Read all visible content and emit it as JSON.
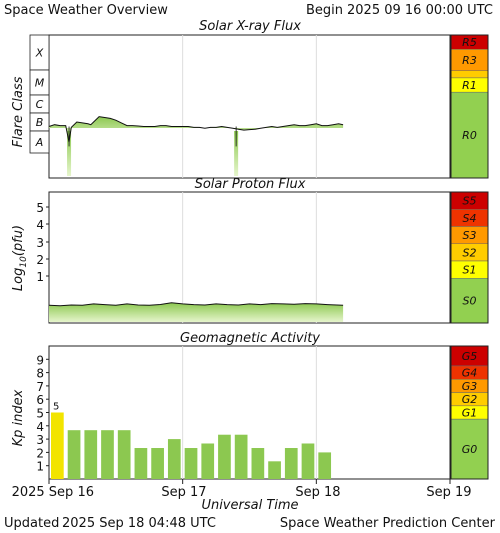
{
  "header": {
    "title": "Space Weather Overview",
    "begin_label": "Begin",
    "begin_value": "2025 09 16 00:00 UTC"
  },
  "footer": {
    "updated_label": "Updated",
    "updated_value": "2025 Sep 18 04:48 UTC",
    "credit": "Space Weather Prediction Center"
  },
  "time_axis": {
    "label": "Universal Time",
    "ticks": [
      "2025 Sep 16",
      "Sep 17",
      "Sep 18",
      "Sep 19"
    ],
    "range_hours": [
      0,
      72
    ],
    "data_end_hours": 52.8
  },
  "chart_data": [
    {
      "type": "area",
      "title": "Solar X-ray Flux",
      "ylabel": "Flare Class",
      "y_ticks": [
        "X",
        "M",
        "C",
        "B",
        "A"
      ],
      "scale_labels": [
        "R5",
        "R3",
        "R1",
        "R0"
      ],
      "series": [
        {
          "x": [
            0,
            1,
            2,
            3,
            3.6,
            4,
            5,
            6,
            7,
            7.5,
            8,
            9,
            10,
            11,
            12,
            13,
            14,
            15,
            16,
            17,
            18,
            19,
            20,
            21,
            22,
            23,
            24,
            25,
            26,
            27,
            28,
            29,
            30,
            31,
            32,
            33,
            34,
            35,
            36,
            37,
            38,
            39,
            40,
            41,
            42,
            43,
            44,
            45,
            46,
            47,
            48,
            49,
            50,
            51,
            52,
            52.8
          ],
          "value": [
            1.25,
            1.35,
            1.3,
            1.3,
            0.5,
            1.2,
            1.5,
            1.45,
            1.4,
            1.35,
            1.5,
            1.8,
            1.75,
            1.7,
            1.6,
            1.45,
            1.3,
            1.3,
            1.28,
            1.25,
            1.25,
            1.25,
            1.3,
            1.3,
            1.25,
            1.25,
            1.25,
            1.25,
            1.2,
            1.2,
            1.15,
            1.2,
            1.2,
            1.25,
            1.2,
            1.15,
            1.1,
            1.05,
            1.08,
            1.1,
            1.15,
            1.2,
            1.25,
            1.2,
            1.25,
            1.3,
            1.35,
            1.3,
            1.3,
            1.35,
            1.4,
            1.3,
            1.3,
            1.35,
            1.4,
            1.35
          ],
          "dips_at_hours": [
            3.6,
            33.6
          ]
        }
      ],
      "y_unit_note": "value: 0=A, 1=B, 2=C, 3=M, 4=X (log decade)"
    },
    {
      "type": "area",
      "title": "Solar Proton Flux",
      "ylabel": "Log10(pfu)",
      "ylabel_main": "Log",
      "ylabel_sub": "10",
      "ylabel_tail": "(pfu)",
      "y_ticks": [
        "5",
        "4",
        "3",
        "2",
        "1"
      ],
      "ylim": [
        -1.5,
        6
      ],
      "scale_labels": [
        "S5",
        "S4",
        "S3",
        "S2",
        "S1",
        "S0"
      ],
      "series": [
        {
          "x": [
            0,
            2,
            4,
            6,
            8,
            10,
            12,
            14,
            16,
            18,
            20,
            22,
            24,
            26,
            28,
            30,
            32,
            34,
            36,
            38,
            40,
            42,
            44,
            46,
            48,
            50,
            52.8
          ],
          "value": [
            -0.7,
            -0.72,
            -0.68,
            -0.7,
            -0.62,
            -0.66,
            -0.7,
            -0.62,
            -0.68,
            -0.7,
            -0.65,
            -0.55,
            -0.62,
            -0.66,
            -0.68,
            -0.62,
            -0.66,
            -0.68,
            -0.62,
            -0.66,
            -0.6,
            -0.62,
            -0.64,
            -0.6,
            -0.62,
            -0.66,
            -0.7
          ]
        }
      ]
    },
    {
      "type": "bar",
      "title": "Geomagnetic Activity",
      "ylabel": "Kp index",
      "y_ticks": [
        "9",
        "8",
        "7",
        "6",
        "5",
        "4",
        "3",
        "2",
        "1"
      ],
      "ylim": [
        0,
        10
      ],
      "scale_labels": [
        "G5",
        "G4",
        "G3",
        "G2",
        "G1",
        "G0"
      ],
      "bin_hours": 3,
      "values": [
        5.0,
        3.67,
        3.67,
        3.67,
        3.67,
        2.33,
        2.33,
        3.0,
        2.33,
        2.67,
        3.33,
        3.33,
        2.33,
        1.33,
        2.33,
        2.67,
        2.0
      ],
      "annotation": "5"
    }
  ],
  "colors": {
    "data_green": "#8cc850",
    "data_green_light": "#e6f5cc",
    "line": "#111111",
    "grid": "#dddddd",
    "yellow_bar": "#f2e400",
    "g0": "#92d050",
    "g_minor": "#ffff00",
    "g_moderate": "#ffcc00",
    "g_strong": "#ff9900",
    "g_severe": "#ff6600",
    "g_extreme": "#cc0000"
  }
}
